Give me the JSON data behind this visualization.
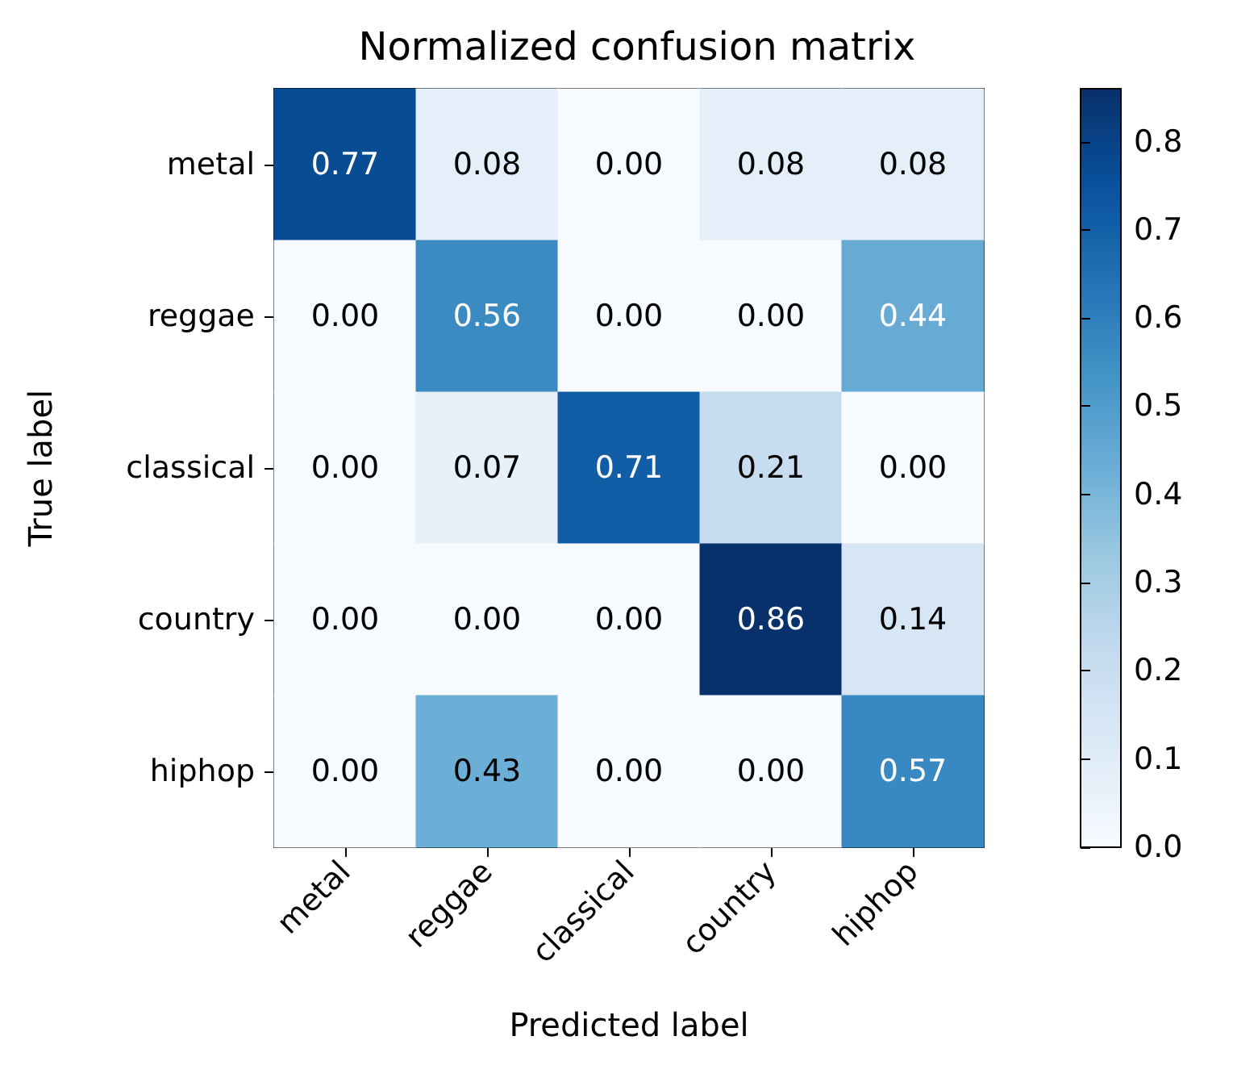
{
  "chart_data": {
    "type": "heatmap",
    "title": "Normalized confusion matrix",
    "xlabel": "Predicted label",
    "ylabel": "True label",
    "categories": [
      "metal",
      "reggae",
      "classical",
      "country",
      "hiphop"
    ],
    "y_categories": [
      "metal",
      "reggae",
      "classical",
      "country",
      "hiphop"
    ],
    "cells": [
      [
        0.77,
        0.08,
        0.0,
        0.08,
        0.08
      ],
      [
        0.0,
        0.56,
        0.0,
        0.0,
        0.44
      ],
      [
        0.0,
        0.07,
        0.71,
        0.21,
        0.0
      ],
      [
        0.0,
        0.0,
        0.0,
        0.86,
        0.14
      ],
      [
        0.0,
        0.43,
        0.0,
        0.0,
        0.57
      ]
    ],
    "cell_labels": [
      [
        "0.77",
        "0.08",
        "0.00",
        "0.08",
        "0.08"
      ],
      [
        "0.00",
        "0.56",
        "0.00",
        "0.00",
        "0.44"
      ],
      [
        "0.00",
        "0.07",
        "0.71",
        "0.21",
        "0.00"
      ],
      [
        "0.00",
        "0.00",
        "0.00",
        "0.86",
        "0.14"
      ],
      [
        "0.00",
        "0.43",
        "0.00",
        "0.00",
        "0.57"
      ]
    ],
    "clim": [
      0,
      0.86
    ],
    "cticks": [
      {
        "value": 0,
        "label": "0.0"
      },
      {
        "value": 0.1,
        "label": "0.1"
      },
      {
        "value": 0.2,
        "label": "0.2"
      },
      {
        "value": 0.3,
        "label": "0.3"
      },
      {
        "value": 0.4,
        "label": "0.4"
      },
      {
        "value": 0.5,
        "label": "0.5"
      },
      {
        "value": 0.6,
        "label": "0.6"
      },
      {
        "value": 0.7,
        "label": "0.7"
      },
      {
        "value": 0.8,
        "label": "0.8"
      }
    ],
    "data_labels": true
  }
}
